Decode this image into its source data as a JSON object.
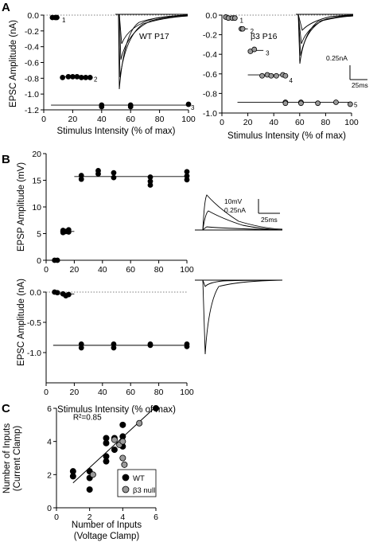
{
  "panels": {
    "A": "A",
    "B": "B",
    "C": "C"
  },
  "chart_data": [
    {
      "id": "A-left",
      "type": "scatter",
      "ylabel": "EPSC Amplitude (nA)",
      "xlabel": "Stimulus Intensity (% of max)",
      "xlim": [
        0,
        100
      ],
      "ylim": [
        -1.2,
        0
      ],
      "xticks": [
        0,
        20,
        40,
        60,
        80,
        100
      ],
      "yticks": [
        0.0,
        -0.2,
        -0.4,
        -0.6,
        -0.8,
        -1.0,
        -1.2
      ],
      "ytick_labels": [
        "0.0",
        "-0.2",
        "-0.4",
        "-0.6",
        "-0.8",
        "-1.0",
        "-1.2"
      ],
      "inset_label": "WT P17",
      "levels": [
        {
          "label": "1",
          "y": -0.03,
          "x_range": [
            5,
            11
          ],
          "points": [
            [
              6,
              -0.03
            ],
            [
              8,
              -0.03
            ],
            [
              9,
              -0.03
            ]
          ]
        },
        {
          "label": "2",
          "y": -0.78,
          "x_range": [
            12,
            33
          ],
          "points": [
            [
              13,
              -0.79
            ],
            [
              17,
              -0.78
            ],
            [
              20,
              -0.78
            ],
            [
              23,
              -0.78
            ],
            [
              26,
              -0.79
            ],
            [
              29,
              -0.79
            ],
            [
              32,
              -0.79
            ]
          ]
        },
        {
          "label": "3",
          "y": -1.14,
          "x_range": [
            5,
            100
          ],
          "points": [
            [
              40,
              -1.14
            ],
            [
              40,
              -1.16
            ],
            [
              60,
              -1.14
            ],
            [
              60,
              -1.16
            ],
            [
              100,
              -1.13
            ]
          ]
        }
      ]
    },
    {
      "id": "A-right",
      "type": "scatter",
      "xlabel": "Stimulus Intensity (% of max)",
      "xlim": [
        0,
        100
      ],
      "ylim": [
        -1.0,
        0
      ],
      "xticks": [
        0,
        20,
        40,
        60,
        80,
        100
      ],
      "yticks": [
        0.0,
        -0.2,
        -0.4,
        -0.6,
        -0.8,
        -1.0
      ],
      "ytick_labels": [
        "0.0",
        "-0.2",
        "-0.4",
        "-0.6",
        "-0.8",
        "-1.0"
      ],
      "inset_label": "β3 P16",
      "scale_bar": {
        "amplitude": "0.25nA",
        "time": "25ms"
      },
      "levels": [
        {
          "label": "1",
          "y": -0.03,
          "x_range": [
            2,
            12
          ],
          "points": [
            [
              3,
              -0.02
            ],
            [
              5,
              -0.03
            ],
            [
              8,
              -0.03
            ],
            [
              10,
              -0.03
            ]
          ]
        },
        {
          "label": "2",
          "y": -0.14,
          "x_range": [
            13,
            20
          ],
          "points": [
            [
              15,
              -0.14
            ],
            [
              16,
              -0.14
            ]
          ]
        },
        {
          "label": "3",
          "y": -0.36,
          "x_range": [
            20,
            32
          ],
          "points": [
            [
              22,
              -0.37
            ],
            [
              25,
              -0.35
            ]
          ]
        },
        {
          "label": "4",
          "y": -0.61,
          "x_range": [
            20,
            50
          ],
          "points": [
            [
              31,
              -0.62
            ],
            [
              35,
              -0.61
            ],
            [
              38,
              -0.62
            ],
            [
              42,
              -0.62
            ],
            [
              47,
              -0.61
            ],
            [
              49,
              -0.62
            ]
          ]
        },
        {
          "label": "5",
          "y": -0.89,
          "x_range": [
            12,
            100
          ],
          "points": [
            [
              49,
              -0.89
            ],
            [
              49,
              -0.9
            ],
            [
              61,
              -0.89
            ],
            [
              61,
              -0.9
            ],
            [
              74,
              -0.9
            ],
            [
              88,
              -0.89
            ],
            [
              99,
              -0.91
            ]
          ]
        }
      ]
    },
    {
      "id": "B-top",
      "type": "scatter",
      "ylabel": "EPSP Amplitude (mV)",
      "xlim": [
        0,
        100
      ],
      "ylim": [
        0,
        20
      ],
      "xticks": [
        0,
        20,
        40,
        60,
        80,
        100
      ],
      "yticks": [
        0,
        5,
        10,
        15,
        20
      ],
      "ytick_labels": [
        "0",
        "5",
        "10",
        "15",
        "20"
      ],
      "scale_bar": {
        "amplitude": "10mV",
        "amplitude2": "0.25nA",
        "time": "25ms"
      },
      "levels": [
        {
          "y": 0,
          "x_range": [
            5,
            10
          ],
          "points": [
            [
              6,
              0
            ],
            [
              8,
              0
            ]
          ]
        },
        {
          "y": 5.4,
          "x_range": [
            10,
            20
          ],
          "points": [
            [
              12,
              5.2
            ],
            [
              12,
              5.6
            ],
            [
              14,
              5.4
            ],
            [
              16,
              5.3
            ],
            [
              16,
              5.7
            ]
          ]
        },
        {
          "y": 15.7,
          "x_range": [
            20,
            100
          ],
          "points": [
            [
              25,
              15.2
            ],
            [
              25,
              15.9
            ],
            [
              37,
              16.2
            ],
            [
              37,
              16.8
            ],
            [
              48,
              15.5
            ],
            [
              48,
              16.4
            ],
            [
              74,
              14.1
            ],
            [
              74,
              14.8
            ],
            [
              74,
              15.6
            ],
            [
              100,
              15.1
            ],
            [
              100,
              15.8
            ],
            [
              100,
              16.6
            ]
          ]
        }
      ]
    },
    {
      "id": "B-bottom",
      "type": "scatter",
      "ylabel": "EPSC Amplitude (nA)",
      "xlabel": "Stimulus Intensity (% of max)",
      "xlim": [
        0,
        100
      ],
      "ylim": [
        -1.5,
        0
      ],
      "xticks": [
        0,
        20,
        40,
        60,
        80,
        100
      ],
      "yticks": [
        0.0,
        -0.5,
        -1.0
      ],
      "ytick_labels": [
        "0.0",
        "-0.5",
        "-1.0"
      ],
      "levels": [
        {
          "y": -0.03,
          "x_range": [
            5,
            20
          ],
          "points": [
            [
              6,
              0
            ],
            [
              8,
              -0.01
            ],
            [
              12,
              -0.03
            ],
            [
              14,
              -0.06
            ],
            [
              16,
              -0.04
            ]
          ]
        },
        {
          "y": -0.88,
          "x_range": [
            5,
            100
          ],
          "points": [
            [
              25,
              -0.86
            ],
            [
              25,
              -0.92
            ],
            [
              48,
              -0.86
            ],
            [
              48,
              -0.92
            ],
            [
              74,
              -0.88
            ],
            [
              74,
              -0.86
            ],
            [
              100,
              -0.86
            ],
            [
              100,
              -0.9
            ]
          ]
        }
      ]
    },
    {
      "id": "C",
      "type": "scatter",
      "ylabel": "Number of Inputs (Current Clamp)",
      "xlabel": "Number of Inputs (Voltage Clamp)",
      "xlim": [
        0,
        6
      ],
      "ylim": [
        0,
        6
      ],
      "xticks": [
        0,
        2,
        4,
        6
      ],
      "yticks": [
        0,
        2,
        4,
        6
      ],
      "annotation": "R²=0.85",
      "fit_line": [
        [
          1,
          1.5
        ],
        [
          6,
          6.1
        ]
      ],
      "series": [
        {
          "name": "WT",
          "color": "#000000",
          "points": [
            [
              1,
              2.2
            ],
            [
              1,
              1.9
            ],
            [
              2,
              2.2
            ],
            [
              2,
              1.8
            ],
            [
              2,
              1.1
            ],
            [
              3,
              4.2
            ],
            [
              3,
              3.9
            ],
            [
              3,
              3.1
            ],
            [
              3,
              2.8
            ],
            [
              3.5,
              4.2
            ],
            [
              3.5,
              3.5
            ],
            [
              4,
              5.0
            ],
            [
              4,
              4.3
            ],
            [
              4,
              3.7
            ],
            [
              6,
              6.0
            ]
          ]
        },
        {
          "name": "β3 null",
          "color": "#9a9a9a",
          "points": [
            [
              2.2,
              2.0
            ],
            [
              3.5,
              4.1
            ],
            [
              3.8,
              3.8
            ],
            [
              4.0,
              4.0
            ],
            [
              4.0,
              3.0
            ],
            [
              4.1,
              2.6
            ],
            [
              5.0,
              5.1
            ]
          ]
        }
      ]
    }
  ]
}
